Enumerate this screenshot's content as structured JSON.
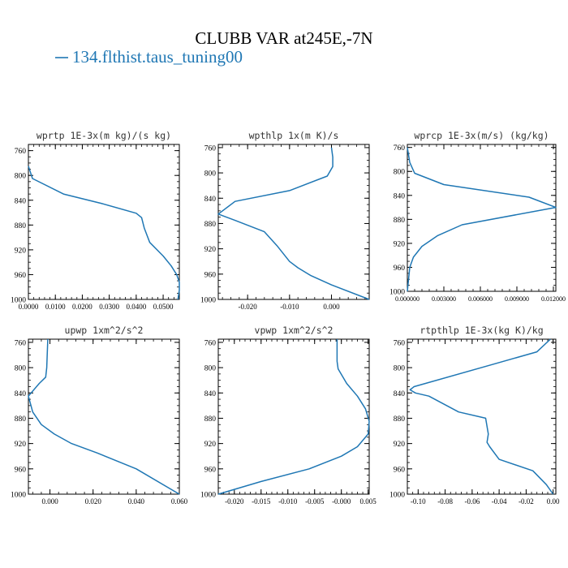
{
  "figure": {
    "title": "CLUBB VAR at245E,-7N",
    "legend_label": "134.flthist.taus_tuning00",
    "line_color": "#1f77b4"
  },
  "chart_data": [
    {
      "type": "line",
      "title": "wprtp  1E-3x(m kg)/(s kg)",
      "xlim": [
        0.0,
        0.056
      ],
      "ylim": [
        1000,
        750
      ],
      "xticks": [
        "0.0000",
        "0.0100",
        "0.0200",
        "0.0300",
        "0.0400",
        "0.0500"
      ],
      "xtick_values": [
        0.0,
        0.01,
        0.02,
        0.03,
        0.04,
        0.05
      ],
      "yticks": [
        "760",
        "800",
        "840",
        "880",
        "920",
        "960",
        "1000"
      ],
      "ytick_values": [
        760,
        800,
        840,
        880,
        920,
        960,
        1000
      ],
      "series": [
        {
          "x": [
            0.0,
            0.0015,
            0.013,
            0.027,
            0.04,
            0.042,
            0.043,
            0.045,
            0.05,
            0.053,
            0.055,
            0.056,
            0.056,
            0.0555
          ],
          "y": [
            785,
            805,
            830,
            845,
            861,
            868,
            885,
            908,
            930,
            946,
            960,
            972,
            985,
            1000
          ]
        }
      ]
    },
    {
      "type": "line",
      "title": "wpthlp  1x(m K)/s",
      "xlim": [
        -0.027,
        0.009
      ],
      "ylim": [
        1000,
        755
      ],
      "xticks": [
        "-0.020",
        "-0.010",
        "0.000"
      ],
      "xtick_values": [
        -0.02,
        -0.01,
        0.0
      ],
      "yticks": [
        "760",
        "800",
        "840",
        "880",
        "920",
        "960",
        "1000"
      ],
      "ytick_values": [
        760,
        800,
        840,
        880,
        920,
        960,
        1000
      ],
      "series": [
        {
          "x": [
            0.0,
            0.0003,
            0.0003,
            -0.001,
            -0.01,
            -0.023,
            -0.027,
            -0.023,
            -0.016,
            -0.013,
            -0.01,
            -0.008,
            -0.005,
            0.0,
            0.009
          ],
          "y": [
            760,
            775,
            790,
            805,
            828,
            845,
            865,
            875,
            893,
            915,
            940,
            950,
            962,
            977,
            1000
          ]
        }
      ]
    },
    {
      "type": "line",
      "title": "wprcp  1E-3x(m/s) (kg/kg)",
      "xlim": [
        0.0,
        0.0122
      ],
      "ylim": [
        1000,
        755
      ],
      "xticks": [
        "0.000000",
        "0.003000",
        "0.006000",
        "0.009000",
        "0.012000"
      ],
      "xtick_values": [
        0.0,
        0.003,
        0.006,
        0.009,
        0.012
      ],
      "yticks": [
        "760",
        "800",
        "840",
        "880",
        "920",
        "960",
        "1000"
      ],
      "ytick_values": [
        760,
        800,
        840,
        880,
        920,
        960,
        1000
      ],
      "series": [
        {
          "x": [
            0.0,
            0.0002,
            0.0006,
            0.003,
            0.01,
            0.0122,
            0.0045,
            0.0025,
            0.0012,
            0.0005,
            0.0002,
            0.0
          ],
          "y": [
            760,
            785,
            803,
            822,
            843,
            860,
            889,
            907,
            925,
            943,
            960,
            1000
          ]
        }
      ]
    },
    {
      "type": "line",
      "title": "upwp  1xm^2/s^2",
      "xlim": [
        -0.01,
        0.06
      ],
      "ylim": [
        1000,
        755
      ],
      "xticks": [
        "0.000",
        "0.020",
        "0.040",
        "0.060"
      ],
      "xtick_values": [
        0.0,
        0.02,
        0.04,
        0.06
      ],
      "yticks": [
        "760",
        "800",
        "840",
        "880",
        "920",
        "960",
        "1000"
      ],
      "ytick_values": [
        760,
        800,
        840,
        880,
        920,
        960,
        1000
      ],
      "series": [
        {
          "x": [
            -0.001,
            -0.0015,
            -0.002,
            -0.005,
            -0.01,
            -0.008,
            -0.004,
            0.002,
            0.01,
            0.022,
            0.04,
            0.06
          ],
          "y": [
            755,
            800,
            815,
            825,
            845,
            870,
            890,
            905,
            920,
            935,
            960,
            1000
          ]
        }
      ]
    },
    {
      "type": "line",
      "title": "vpwp  1xm^2/s^2",
      "xlim": [
        -0.023,
        0.0052
      ],
      "ylim": [
        1000,
        755
      ],
      "xticks": [
        "-0.020",
        "-0.015",
        "-0.010",
        "-0.005",
        "-0.000",
        "0.005"
      ],
      "xtick_values": [
        -0.02,
        -0.015,
        -0.01,
        -0.005,
        0.0,
        0.005
      ],
      "yticks": [
        "760",
        "800",
        "840",
        "880",
        "920",
        "960",
        "1000"
      ],
      "ytick_values": [
        760,
        800,
        840,
        880,
        920,
        960,
        1000
      ],
      "series": [
        {
          "x": [
            -0.0008,
            -0.0008,
            -0.0006,
            0.001,
            0.003,
            0.0045,
            0.0052,
            0.005,
            0.003,
            0.0,
            -0.006,
            -0.015,
            -0.023
          ],
          "y": [
            755,
            790,
            802,
            825,
            845,
            865,
            885,
            905,
            925,
            940,
            960,
            980,
            1000
          ]
        }
      ]
    },
    {
      "type": "line",
      "title": "rtpthlp  1E-3x(kg K)/kg",
      "xlim": [
        -0.108,
        0.002
      ],
      "ylim": [
        1000,
        755
      ],
      "xticks": [
        "-0.10",
        "-0.08",
        "-0.06",
        "-0.04",
        "-0.02",
        "0.00"
      ],
      "xtick_values": [
        -0.1,
        -0.08,
        -0.06,
        -0.04,
        -0.02,
        0.0
      ],
      "yticks": [
        "760",
        "800",
        "840",
        "880",
        "920",
        "960",
        "1000"
      ],
      "ytick_values": [
        760,
        800,
        840,
        880,
        920,
        960,
        1000
      ],
      "series": [
        {
          "x": [
            -0.002,
            -0.012,
            -0.045,
            -0.103,
            -0.106,
            -0.102,
            -0.092,
            -0.07,
            -0.05,
            -0.048,
            -0.049,
            -0.047,
            -0.04,
            -0.015,
            -0.005,
            0.0
          ],
          "y": [
            755,
            775,
            795,
            830,
            835,
            840,
            845,
            870,
            880,
            905,
            918,
            925,
            945,
            963,
            985,
            1000
          ]
        }
      ]
    }
  ]
}
